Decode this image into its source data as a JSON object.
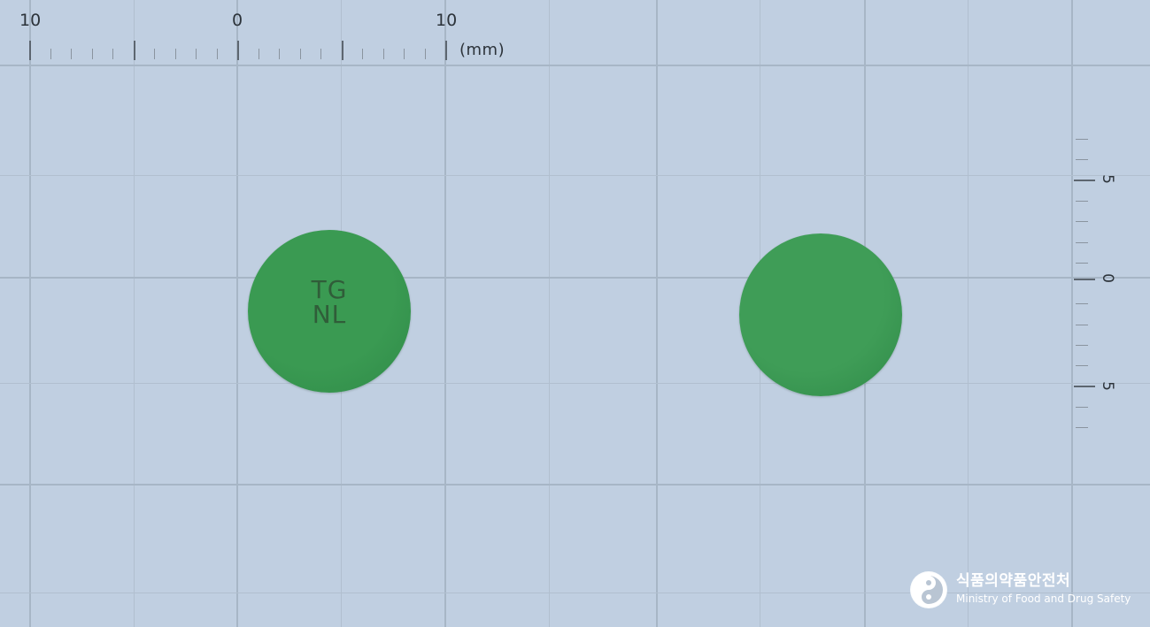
{
  "image": {
    "background_color": "#c0cfe1",
    "grid_color": "#a7b6c6"
  },
  "ruler_top": {
    "labels": [
      "10",
      "0",
      "10"
    ],
    "unit": "(mm)"
  },
  "ruler_right": {
    "labels": [
      "5",
      "0",
      "5"
    ]
  },
  "pills": [
    {
      "name": "pill-front",
      "color": "#3a9a52",
      "imprint_lines": [
        "TG",
        "NL"
      ]
    },
    {
      "name": "pill-back",
      "color": "#3f9d57",
      "imprint_lines": []
    }
  ],
  "watermark": {
    "korean": "식품의약품안전처",
    "english": "Ministry of Food and Drug Safety",
    "icon": "taegeuk-emblem-icon"
  }
}
